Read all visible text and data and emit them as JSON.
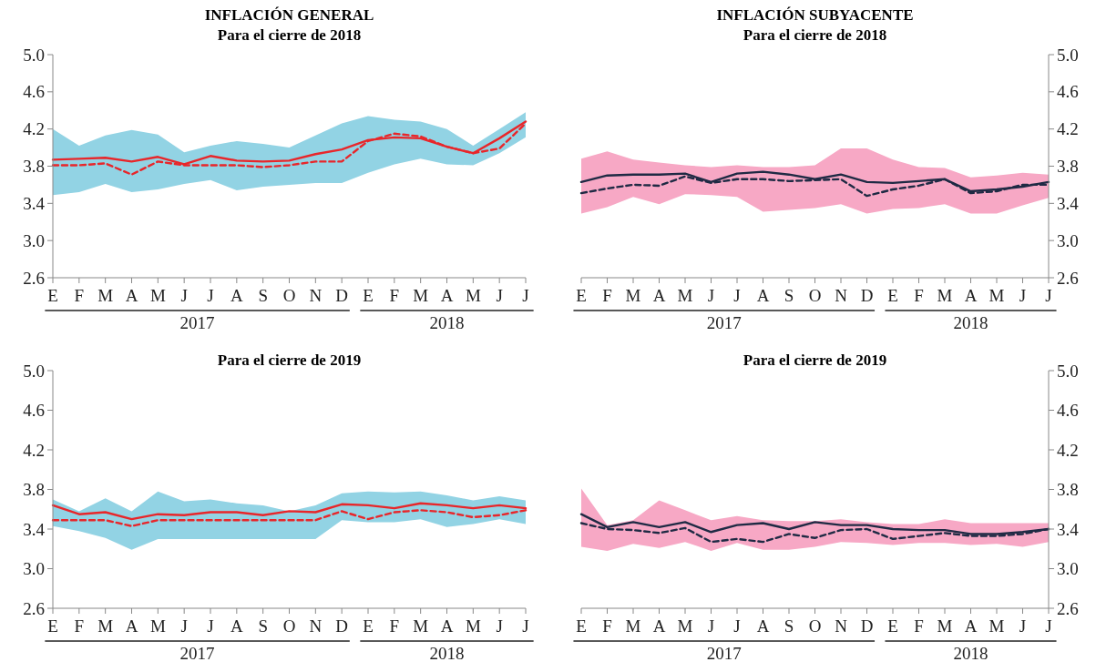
{
  "chart_data": [
    {
      "type": "line",
      "title": "INFLACIÓN GENERAL",
      "subtitle": "Para el cierre de 2018",
      "categories": [
        "E",
        "F",
        "M",
        "A",
        "M",
        "J",
        "J",
        "A",
        "S",
        "O",
        "N",
        "D",
        "E",
        "F",
        "M",
        "A",
        "M",
        "J",
        "J"
      ],
      "ylim": [
        2.6,
        5.0
      ],
      "yticks": [
        {
          "value": 2.6,
          "label": "2.6"
        },
        {
          "value": 3.0,
          "label": "3.0"
        },
        3.4,
        3.8,
        4.2,
        4.6,
        {
          "value": 5.0,
          "label": "5.0"
        }
      ],
      "annotations": [
        "2017",
        "2018"
      ],
      "series": [
        {
          "type": "line",
          "color": "#e8262a",
          "line_style": "solid",
          "values": [
            3.87,
            3.88,
            3.89,
            3.85,
            3.9,
            3.82,
            3.91,
            3.86,
            3.85,
            3.86,
            3.93,
            3.98,
            4.08,
            4.11,
            4.1,
            4.01,
            3.94,
            4.1,
            4.28
          ],
          "lower": [
            3.49,
            3.52,
            3.61,
            3.52,
            3.55,
            3.61,
            3.65,
            3.54,
            3.58,
            3.6,
            3.62,
            3.62,
            3.73,
            3.82,
            3.88,
            3.82,
            3.81,
            3.94,
            4.11
          ],
          "upper": [
            4.2,
            4.02,
            4.13,
            4.19,
            4.14,
            3.95,
            4.02,
            4.07,
            4.04,
            4.0,
            4.13,
            4.26,
            4.34,
            4.3,
            4.28,
            4.2,
            4.02,
            4.2,
            4.38
          ]
        },
        {
          "type": "line",
          "color": "#e8262a",
          "line_style": "dashed",
          "values": [
            3.81,
            3.81,
            3.83,
            3.71,
            3.85,
            3.81,
            3.81,
            3.81,
            3.79,
            3.81,
            3.85,
            3.85,
            4.07,
            4.15,
            4.12,
            4.01,
            3.94,
            3.99,
            4.26
          ]
        }
      ]
    },
    {
      "type": "line",
      "title": "INFLACIÓN SUBYACENTE",
      "subtitle": "Para el cierre de 2018",
      "categories": [
        "E",
        "F",
        "M",
        "A",
        "M",
        "J",
        "J",
        "A",
        "S",
        "O",
        "N",
        "D",
        "E",
        "F",
        "M",
        "A",
        "M",
        "J",
        "J"
      ],
      "y2lim": [
        2.6,
        5.0
      ],
      "y2ticks": [
        {
          "value": 2.6,
          "label": "2.6"
        },
        {
          "value": 3.0,
          "label": "3.0"
        },
        3.4,
        3.8,
        4.2,
        4.6,
        {
          "value": 5.0,
          "label": "5.0"
        }
      ],
      "annotations": [
        "2017",
        "2018"
      ],
      "series": [
        {
          "type": "line",
          "axis": "y2",
          "color": "#1f2a44",
          "line_style": "solid",
          "values": [
            3.63,
            3.7,
            3.71,
            3.71,
            3.72,
            3.63,
            3.72,
            3.74,
            3.71,
            3.66,
            3.71,
            3.63,
            3.62,
            3.64,
            3.66,
            3.53,
            3.55,
            3.58,
            3.63
          ],
          "lower": [
            3.29,
            3.36,
            3.47,
            3.39,
            3.5,
            3.49,
            3.47,
            3.31,
            3.33,
            3.35,
            3.39,
            3.29,
            3.34,
            3.35,
            3.39,
            3.29,
            3.29,
            3.38,
            3.46
          ],
          "upper": [
            3.88,
            3.96,
            3.87,
            3.84,
            3.81,
            3.79,
            3.81,
            3.79,
            3.79,
            3.81,
            3.99,
            3.99,
            3.87,
            3.79,
            3.78,
            3.68,
            3.7,
            3.73,
            3.71
          ]
        },
        {
          "type": "line",
          "axis": "y2",
          "color": "#1f2a44",
          "line_style": "dashed",
          "values": [
            3.51,
            3.56,
            3.6,
            3.59,
            3.69,
            3.62,
            3.66,
            3.66,
            3.64,
            3.65,
            3.66,
            3.48,
            3.55,
            3.59,
            3.66,
            3.51,
            3.53,
            3.6,
            3.6
          ]
        }
      ]
    },
    {
      "type": "line",
      "title": "Para el cierre de 2019",
      "categories": [
        "E",
        "F",
        "M",
        "A",
        "M",
        "J",
        "J",
        "A",
        "S",
        "O",
        "N",
        "D",
        "E",
        "F",
        "M",
        "A",
        "M",
        "J",
        "J"
      ],
      "ylim": [
        2.6,
        5.0
      ],
      "yticks": [
        {
          "value": 2.6,
          "label": "2.6"
        },
        {
          "value": 3.0,
          "label": "3.0"
        },
        3.4,
        3.8,
        4.2,
        4.6,
        {
          "value": 5.0,
          "label": "5.0"
        }
      ],
      "annotations": [
        "2017",
        "2018"
      ],
      "series": [
        {
          "type": "line",
          "color": "#e8262a",
          "line_style": "solid",
          "values": [
            3.64,
            3.55,
            3.57,
            3.5,
            3.55,
            3.54,
            3.57,
            3.57,
            3.54,
            3.58,
            3.57,
            3.65,
            3.64,
            3.61,
            3.66,
            3.64,
            3.61,
            3.64,
            3.61
          ],
          "lower": [
            3.43,
            3.38,
            3.31,
            3.19,
            3.3,
            3.3,
            3.3,
            3.3,
            3.3,
            3.3,
            3.3,
            3.49,
            3.47,
            3.47,
            3.5,
            3.42,
            3.45,
            3.5,
            3.45
          ],
          "upper": [
            3.7,
            3.58,
            3.71,
            3.58,
            3.78,
            3.68,
            3.7,
            3.66,
            3.64,
            3.58,
            3.64,
            3.76,
            3.78,
            3.77,
            3.78,
            3.74,
            3.69,
            3.73,
            3.69
          ]
        },
        {
          "type": "line",
          "color": "#e8262a",
          "line_style": "dashed",
          "values": [
            3.49,
            3.49,
            3.49,
            3.43,
            3.49,
            3.49,
            3.49,
            3.49,
            3.49,
            3.49,
            3.49,
            3.58,
            3.5,
            3.57,
            3.59,
            3.57,
            3.52,
            3.54,
            3.59
          ]
        }
      ]
    },
    {
      "type": "line",
      "title": "Para el cierre de 2019",
      "categories": [
        "E",
        "F",
        "M",
        "A",
        "M",
        "J",
        "J",
        "A",
        "S",
        "O",
        "N",
        "D",
        "E",
        "F",
        "M",
        "A",
        "M",
        "J",
        "J"
      ],
      "y2lim": [
        2.6,
        5.0
      ],
      "y2ticks": [
        {
          "value": 2.6,
          "label": "2.6"
        },
        {
          "value": 3.0,
          "label": "3.0"
        },
        3.4,
        3.8,
        4.2,
        4.6,
        {
          "value": 5.0,
          "label": "5.0"
        }
      ],
      "annotations": [
        "2017",
        "2018"
      ],
      "series": [
        {
          "type": "line",
          "axis": "y2",
          "color": "#1f2a44",
          "line_style": "solid",
          "values": [
            3.55,
            3.42,
            3.47,
            3.42,
            3.47,
            3.37,
            3.44,
            3.46,
            3.4,
            3.47,
            3.44,
            3.44,
            3.4,
            3.39,
            3.39,
            3.35,
            3.35,
            3.37,
            3.4
          ],
          "lower": [
            3.22,
            3.18,
            3.25,
            3.21,
            3.27,
            3.18,
            3.26,
            3.19,
            3.19,
            3.22,
            3.27,
            3.26,
            3.24,
            3.26,
            3.26,
            3.24,
            3.25,
            3.22,
            3.27
          ],
          "upper": [
            3.81,
            3.44,
            3.49,
            3.69,
            3.59,
            3.49,
            3.53,
            3.49,
            3.48,
            3.48,
            3.5,
            3.47,
            3.45,
            3.45,
            3.5,
            3.46,
            3.46,
            3.46,
            3.46
          ]
        },
        {
          "type": "line",
          "axis": "y2",
          "color": "#1f2a44",
          "line_style": "dashed",
          "values": [
            3.46,
            3.4,
            3.39,
            3.36,
            3.41,
            3.27,
            3.3,
            3.27,
            3.35,
            3.31,
            3.39,
            3.4,
            3.3,
            3.33,
            3.36,
            3.33,
            3.33,
            3.35,
            3.4
          ]
        }
      ]
    }
  ]
}
